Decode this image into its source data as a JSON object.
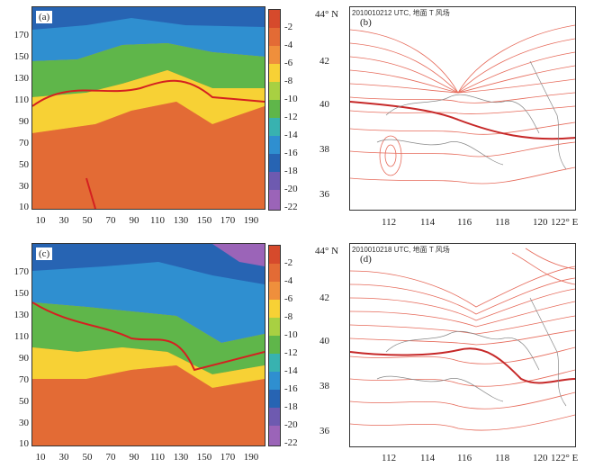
{
  "panels": {
    "a": {
      "label": "(a)",
      "y_ticks": [
        "170",
        "150",
        "130",
        "110",
        "90",
        "70",
        "50",
        "30",
        "10"
      ],
      "x_ticks": [
        "10",
        "30",
        "50",
        "70",
        "90",
        "110",
        "130",
        "150",
        "170",
        "190"
      ]
    },
    "b": {
      "label": "(b)",
      "header": "2010010212 UTC, 地面 T 风场",
      "lat_ticks": [
        "44° N",
        "42",
        "40",
        "38",
        "36"
      ],
      "lon_ticks": [
        "112",
        "114",
        "116",
        "118",
        "120",
        "122° E"
      ]
    },
    "c": {
      "label": "(c)",
      "y_ticks": [
        "170",
        "150",
        "130",
        "110",
        "90",
        "70",
        "50",
        "30",
        "10"
      ],
      "x_ticks": [
        "10",
        "30",
        "50",
        "70",
        "90",
        "110",
        "130",
        "150",
        "170",
        "190"
      ]
    },
    "d": {
      "label": "(d)",
      "header": "2010010218 UTC, 地面 T 风场",
      "lat_ticks": [
        "44° N",
        "42",
        "40",
        "38",
        "36"
      ],
      "lon_ticks": [
        "112",
        "114",
        "116",
        "118",
        "120",
        "122° E"
      ]
    }
  },
  "colorbar": {
    "labels": [
      "-2",
      "-4",
      "-6",
      "-8",
      "-10",
      "-12",
      "-14",
      "-16",
      "-18",
      "-20",
      "-22"
    ],
    "colors": [
      "#d64a2c",
      "#e36b35",
      "#ef8f3c",
      "#f7d135",
      "#a8d042",
      "#5fb64a",
      "#38b2b0",
      "#2f8fd0",
      "#2764b3",
      "#6e5ab0",
      "#9b64b8"
    ]
  }
}
